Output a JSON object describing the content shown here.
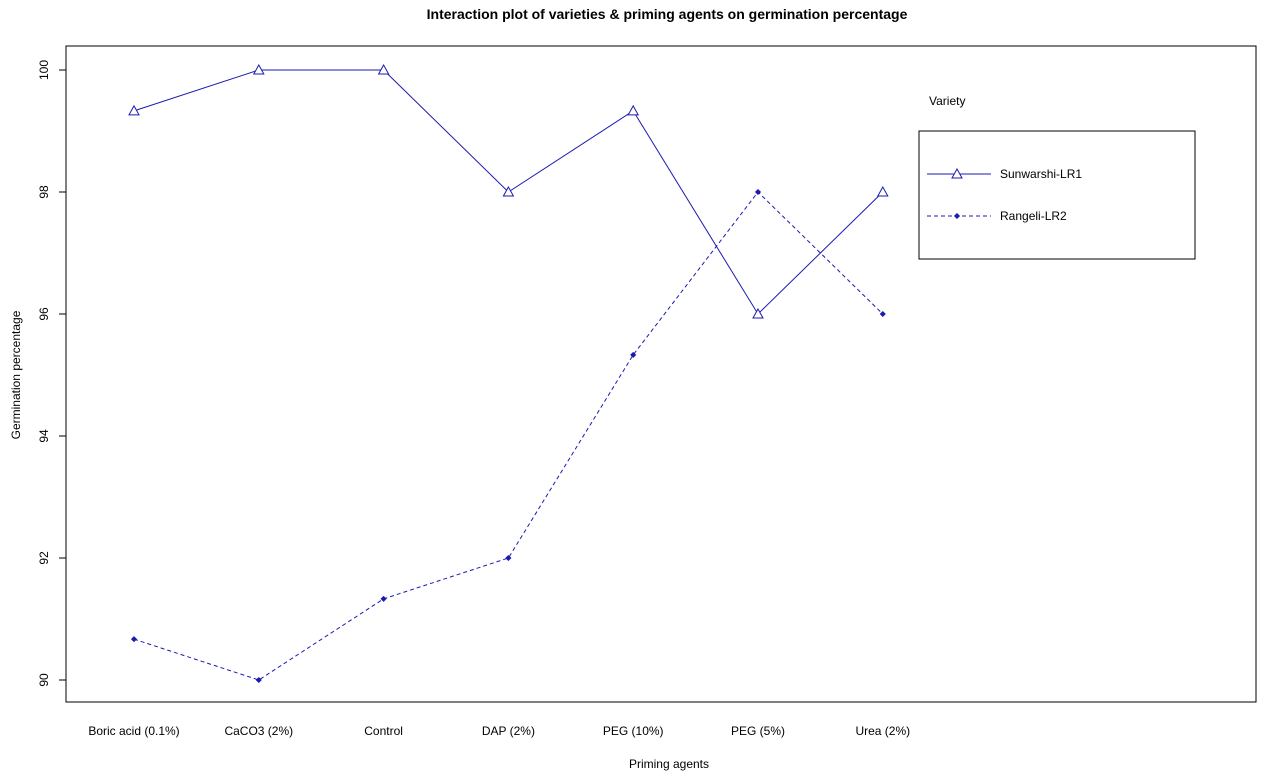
{
  "chart_data": {
    "type": "line",
    "title": "Interaction plot of varieties & priming agents on germination percentage",
    "xlabel": "Priming agents",
    "ylabel": "Germination percentage",
    "categories": [
      "Boric acid (0.1%)",
      "CaCO3 (2%)",
      "Control",
      "DAP (2%)",
      "PEG (10%)",
      "PEG (5%)",
      "Urea (2%)"
    ],
    "ylim": [
      90,
      100
    ],
    "yticks": [
      90,
      92,
      94,
      96,
      98,
      100
    ],
    "grid": false,
    "legend": {
      "title": "Variety",
      "placement": "top-right"
    },
    "series": [
      {
        "name": "Sunwarshi-LR1",
        "values": [
          99.33,
          100,
          100,
          98,
          99.33,
          96,
          98
        ],
        "line_style": "solid",
        "marker": "open-triangle",
        "color": "#1a1ab0"
      },
      {
        "name": "Rangeli-LR2",
        "values": [
          90.67,
          90,
          91.33,
          92,
          95.33,
          98,
          96
        ],
        "line_style": "dashed",
        "marker": "filled-diamond",
        "color": "#1a1ab0"
      }
    ]
  }
}
